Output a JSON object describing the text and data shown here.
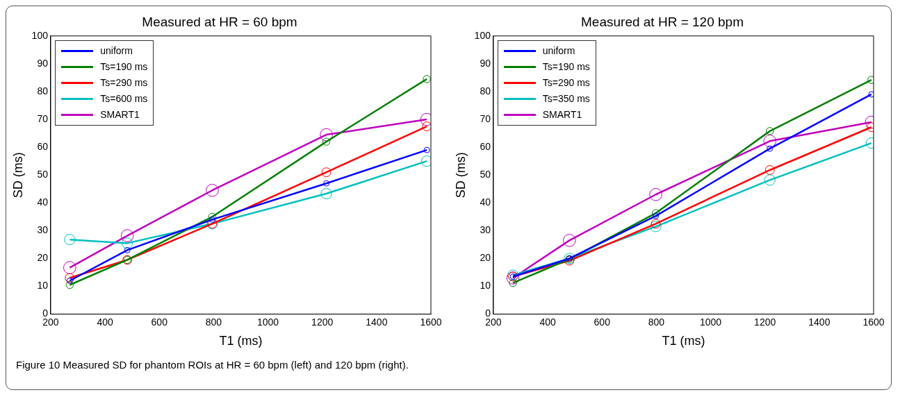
{
  "chart_data": [
    {
      "type": "line",
      "title": "Measured at HR = 60 bpm",
      "xlabel": "T1 (ms)",
      "ylabel": "SD (ms)",
      "xlim": [
        200,
        1600
      ],
      "xticks": [
        200,
        400,
        600,
        800,
        1000,
        1200,
        1400,
        1600
      ],
      "ylim": [
        0,
        100
      ],
      "yticks": [
        0,
        10,
        20,
        30,
        40,
        50,
        60,
        70,
        80,
        90,
        100
      ],
      "grid": false,
      "legend": "top left",
      "marker": "circle",
      "line_style": "solid",
      "x": [
        270,
        482,
        795,
        1215,
        1585
      ],
      "series": [
        {
          "name": "uniform",
          "color": "#0000ff",
          "values": [
            12,
            23,
            34,
            47,
            59
          ]
        },
        {
          "name": "Ts=190 ms",
          "color": "#007f00",
          "values": [
            10.5,
            19.5,
            35,
            62,
            84.5
          ]
        },
        {
          "name": "Ts=290 ms",
          "color": "#ff0000",
          "values": [
            13,
            19.5,
            32.5,
            51,
            67.5
          ]
        },
        {
          "name": "Ts=600 ms",
          "color": "#00bfbf",
          "values": [
            26.8,
            25.5,
            32.5,
            43.3,
            55
          ]
        },
        {
          "name": "SMART1",
          "color": "#bf00bf",
          "values": [
            16.7,
            28.2,
            44.5,
            64.5,
            70
          ]
        }
      ],
      "annotations": [
        "Figure 10 Measured SD for phantom ROIs at HR = 60 bpm (left) and 120 bpm (right)."
      ]
    },
    {
      "type": "line",
      "title": "Measured at HR = 120 bpm",
      "xlabel": "T1 (ms)",
      "ylabel": "SD (ms)",
      "xlim": [
        200,
        1600
      ],
      "xticks": [
        200,
        400,
        600,
        800,
        1000,
        1200,
        1400,
        1600
      ],
      "ylim": [
        0,
        100
      ],
      "yticks": [
        0,
        10,
        20,
        30,
        40,
        50,
        60,
        70,
        80,
        90,
        100
      ],
      "grid": false,
      "legend": "top left",
      "marker": "circle",
      "line_style": "solid",
      "x": [
        272,
        480,
        798,
        1218,
        1592
      ],
      "series": [
        {
          "name": "uniform",
          "color": "#0000ff",
          "values": [
            13.5,
            20,
            35.3,
            59.5,
            79
          ]
        },
        {
          "name": "Ts=190 ms",
          "color": "#007f00",
          "values": [
            11.2,
            19.8,
            36.3,
            65.8,
            84.2
          ]
        },
        {
          "name": "Ts=290 ms",
          "color": "#ff0000",
          "values": [
            13.5,
            19.2,
            32.5,
            51.8,
            67.2
          ]
        },
        {
          "name": "Ts=350 ms",
          "color": "#00bfbf",
          "values": [
            14,
            20,
            31.5,
            48.2,
            61.5
          ]
        },
        {
          "name": "SMART1",
          "color": "#bf00bf",
          "values": [
            13,
            26.5,
            43,
            62.2,
            69
          ]
        }
      ]
    }
  ]
}
